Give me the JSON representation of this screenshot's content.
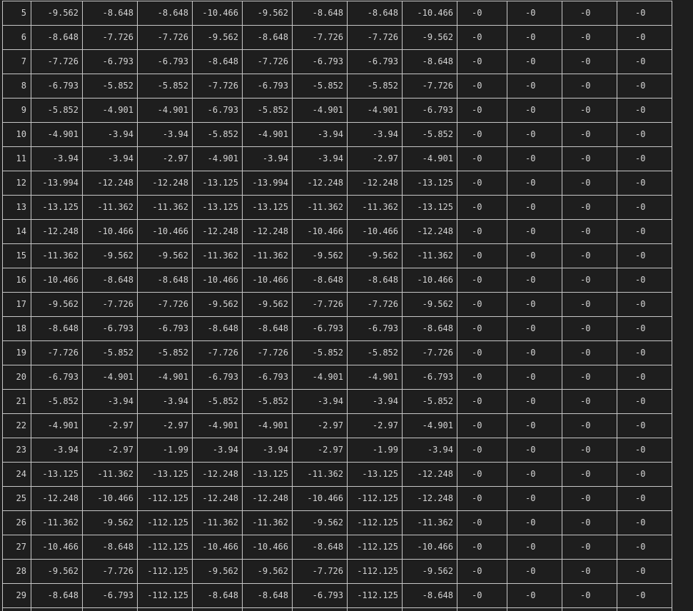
{
  "table": {
    "rows": [
      {
        "idx": "5",
        "cells": [
          "-9.562",
          "-8.648",
          "-8.648",
          "-10.466",
          "-9.562",
          "-8.648",
          "-8.648",
          "-10.466",
          "-0",
          "-0",
          "-0",
          "-0"
        ]
      },
      {
        "idx": "6",
        "cells": [
          "-8.648",
          "-7.726",
          "-7.726",
          "-9.562",
          "-8.648",
          "-7.726",
          "-7.726",
          "-9.562",
          "-0",
          "-0",
          "-0",
          "-0"
        ]
      },
      {
        "idx": "7",
        "cells": [
          "-7.726",
          "-6.793",
          "-6.793",
          "-8.648",
          "-7.726",
          "-6.793",
          "-6.793",
          "-8.648",
          "-0",
          "-0",
          "-0",
          "-0"
        ]
      },
      {
        "idx": "8",
        "cells": [
          "-6.793",
          "-5.852",
          "-5.852",
          "-7.726",
          "-6.793",
          "-5.852",
          "-5.852",
          "-7.726",
          "-0",
          "-0",
          "-0",
          "-0"
        ]
      },
      {
        "idx": "9",
        "cells": [
          "-5.852",
          "-4.901",
          "-4.901",
          "-6.793",
          "-5.852",
          "-4.901",
          "-4.901",
          "-6.793",
          "-0",
          "-0",
          "-0",
          "-0"
        ]
      },
      {
        "idx": "10",
        "cells": [
          "-4.901",
          "-3.94",
          "-3.94",
          "-5.852",
          "-4.901",
          "-3.94",
          "-3.94",
          "-5.852",
          "-0",
          "-0",
          "-0",
          "-0"
        ]
      },
      {
        "idx": "11",
        "cells": [
          "-3.94",
          "-3.94",
          "-2.97",
          "-4.901",
          "-3.94",
          "-3.94",
          "-2.97",
          "-4.901",
          "-0",
          "-0",
          "-0",
          "-0"
        ]
      },
      {
        "idx": "12",
        "cells": [
          "-13.994",
          "-12.248",
          "-12.248",
          "-13.125",
          "-13.994",
          "-12.248",
          "-12.248",
          "-13.125",
          "-0",
          "-0",
          "-0",
          "-0"
        ]
      },
      {
        "idx": "13",
        "cells": [
          "-13.125",
          "-11.362",
          "-11.362",
          "-13.125",
          "-13.125",
          "-11.362",
          "-11.362",
          "-13.125",
          "-0",
          "-0",
          "-0",
          "-0"
        ]
      },
      {
        "idx": "14",
        "cells": [
          "-12.248",
          "-10.466",
          "-10.466",
          "-12.248",
          "-12.248",
          "-10.466",
          "-10.466",
          "-12.248",
          "-0",
          "-0",
          "-0",
          "-0"
        ]
      },
      {
        "idx": "15",
        "cells": [
          "-11.362",
          "-9.562",
          "-9.562",
          "-11.362",
          "-11.362",
          "-9.562",
          "-9.562",
          "-11.362",
          "-0",
          "-0",
          "-0",
          "-0"
        ]
      },
      {
        "idx": "16",
        "cells": [
          "-10.466",
          "-8.648",
          "-8.648",
          "-10.466",
          "-10.466",
          "-8.648",
          "-8.648",
          "-10.466",
          "-0",
          "-0",
          "-0",
          "-0"
        ]
      },
      {
        "idx": "17",
        "cells": [
          "-9.562",
          "-7.726",
          "-7.726",
          "-9.562",
          "-9.562",
          "-7.726",
          "-7.726",
          "-9.562",
          "-0",
          "-0",
          "-0",
          "-0"
        ]
      },
      {
        "idx": "18",
        "cells": [
          "-8.648",
          "-6.793",
          "-6.793",
          "-8.648",
          "-8.648",
          "-6.793",
          "-6.793",
          "-8.648",
          "-0",
          "-0",
          "-0",
          "-0"
        ]
      },
      {
        "idx": "19",
        "cells": [
          "-7.726",
          "-5.852",
          "-5.852",
          "-7.726",
          "-7.726",
          "-5.852",
          "-5.852",
          "-7.726",
          "-0",
          "-0",
          "-0",
          "-0"
        ]
      },
      {
        "idx": "20",
        "cells": [
          "-6.793",
          "-4.901",
          "-4.901",
          "-6.793",
          "-6.793",
          "-4.901",
          "-4.901",
          "-6.793",
          "-0",
          "-0",
          "-0",
          "-0"
        ]
      },
      {
        "idx": "21",
        "cells": [
          "-5.852",
          "-3.94",
          "-3.94",
          "-5.852",
          "-5.852",
          "-3.94",
          "-3.94",
          "-5.852",
          "-0",
          "-0",
          "-0",
          "-0"
        ]
      },
      {
        "idx": "22",
        "cells": [
          "-4.901",
          "-2.97",
          "-2.97",
          "-4.901",
          "-4.901",
          "-2.97",
          "-2.97",
          "-4.901",
          "-0",
          "-0",
          "-0",
          "-0"
        ]
      },
      {
        "idx": "23",
        "cells": [
          "-3.94",
          "-2.97",
          "-1.99",
          "-3.94",
          "-3.94",
          "-2.97",
          "-1.99",
          "-3.94",
          "-0",
          "-0",
          "-0",
          "-0"
        ]
      },
      {
        "idx": "24",
        "cells": [
          "-13.125",
          "-11.362",
          "-13.125",
          "-12.248",
          "-13.125",
          "-11.362",
          "-13.125",
          "-12.248",
          "-0",
          "-0",
          "-0",
          "-0"
        ]
      },
      {
        "idx": "25",
        "cells": [
          "-12.248",
          "-10.466",
          "-112.125",
          "-12.248",
          "-12.248",
          "-10.466",
          "-112.125",
          "-12.248",
          "-0",
          "-0",
          "-0",
          "-0"
        ]
      },
      {
        "idx": "26",
        "cells": [
          "-11.362",
          "-9.562",
          "-112.125",
          "-11.362",
          "-11.362",
          "-9.562",
          "-112.125",
          "-11.362",
          "-0",
          "-0",
          "-0",
          "-0"
        ]
      },
      {
        "idx": "27",
        "cells": [
          "-10.466",
          "-8.648",
          "-112.125",
          "-10.466",
          "-10.466",
          "-8.648",
          "-112.125",
          "-10.466",
          "-0",
          "-0",
          "-0",
          "-0"
        ]
      },
      {
        "idx": "28",
        "cells": [
          "-9.562",
          "-7.726",
          "-112.125",
          "-9.562",
          "-9.562",
          "-7.726",
          "-112.125",
          "-9.562",
          "-0",
          "-0",
          "-0",
          "-0"
        ]
      },
      {
        "idx": "29",
        "cells": [
          "-8.648",
          "-6.793",
          "-112.125",
          "-8.648",
          "-8.648",
          "-6.793",
          "-112.125",
          "-8.648",
          "-0",
          "-0",
          "-0",
          "-0"
        ]
      },
      {
        "idx": "",
        "cells": [
          "",
          "",
          "",
          "",
          "",
          "",
          "",
          "",
          "",
          "",
          "",
          ""
        ]
      }
    ]
  }
}
